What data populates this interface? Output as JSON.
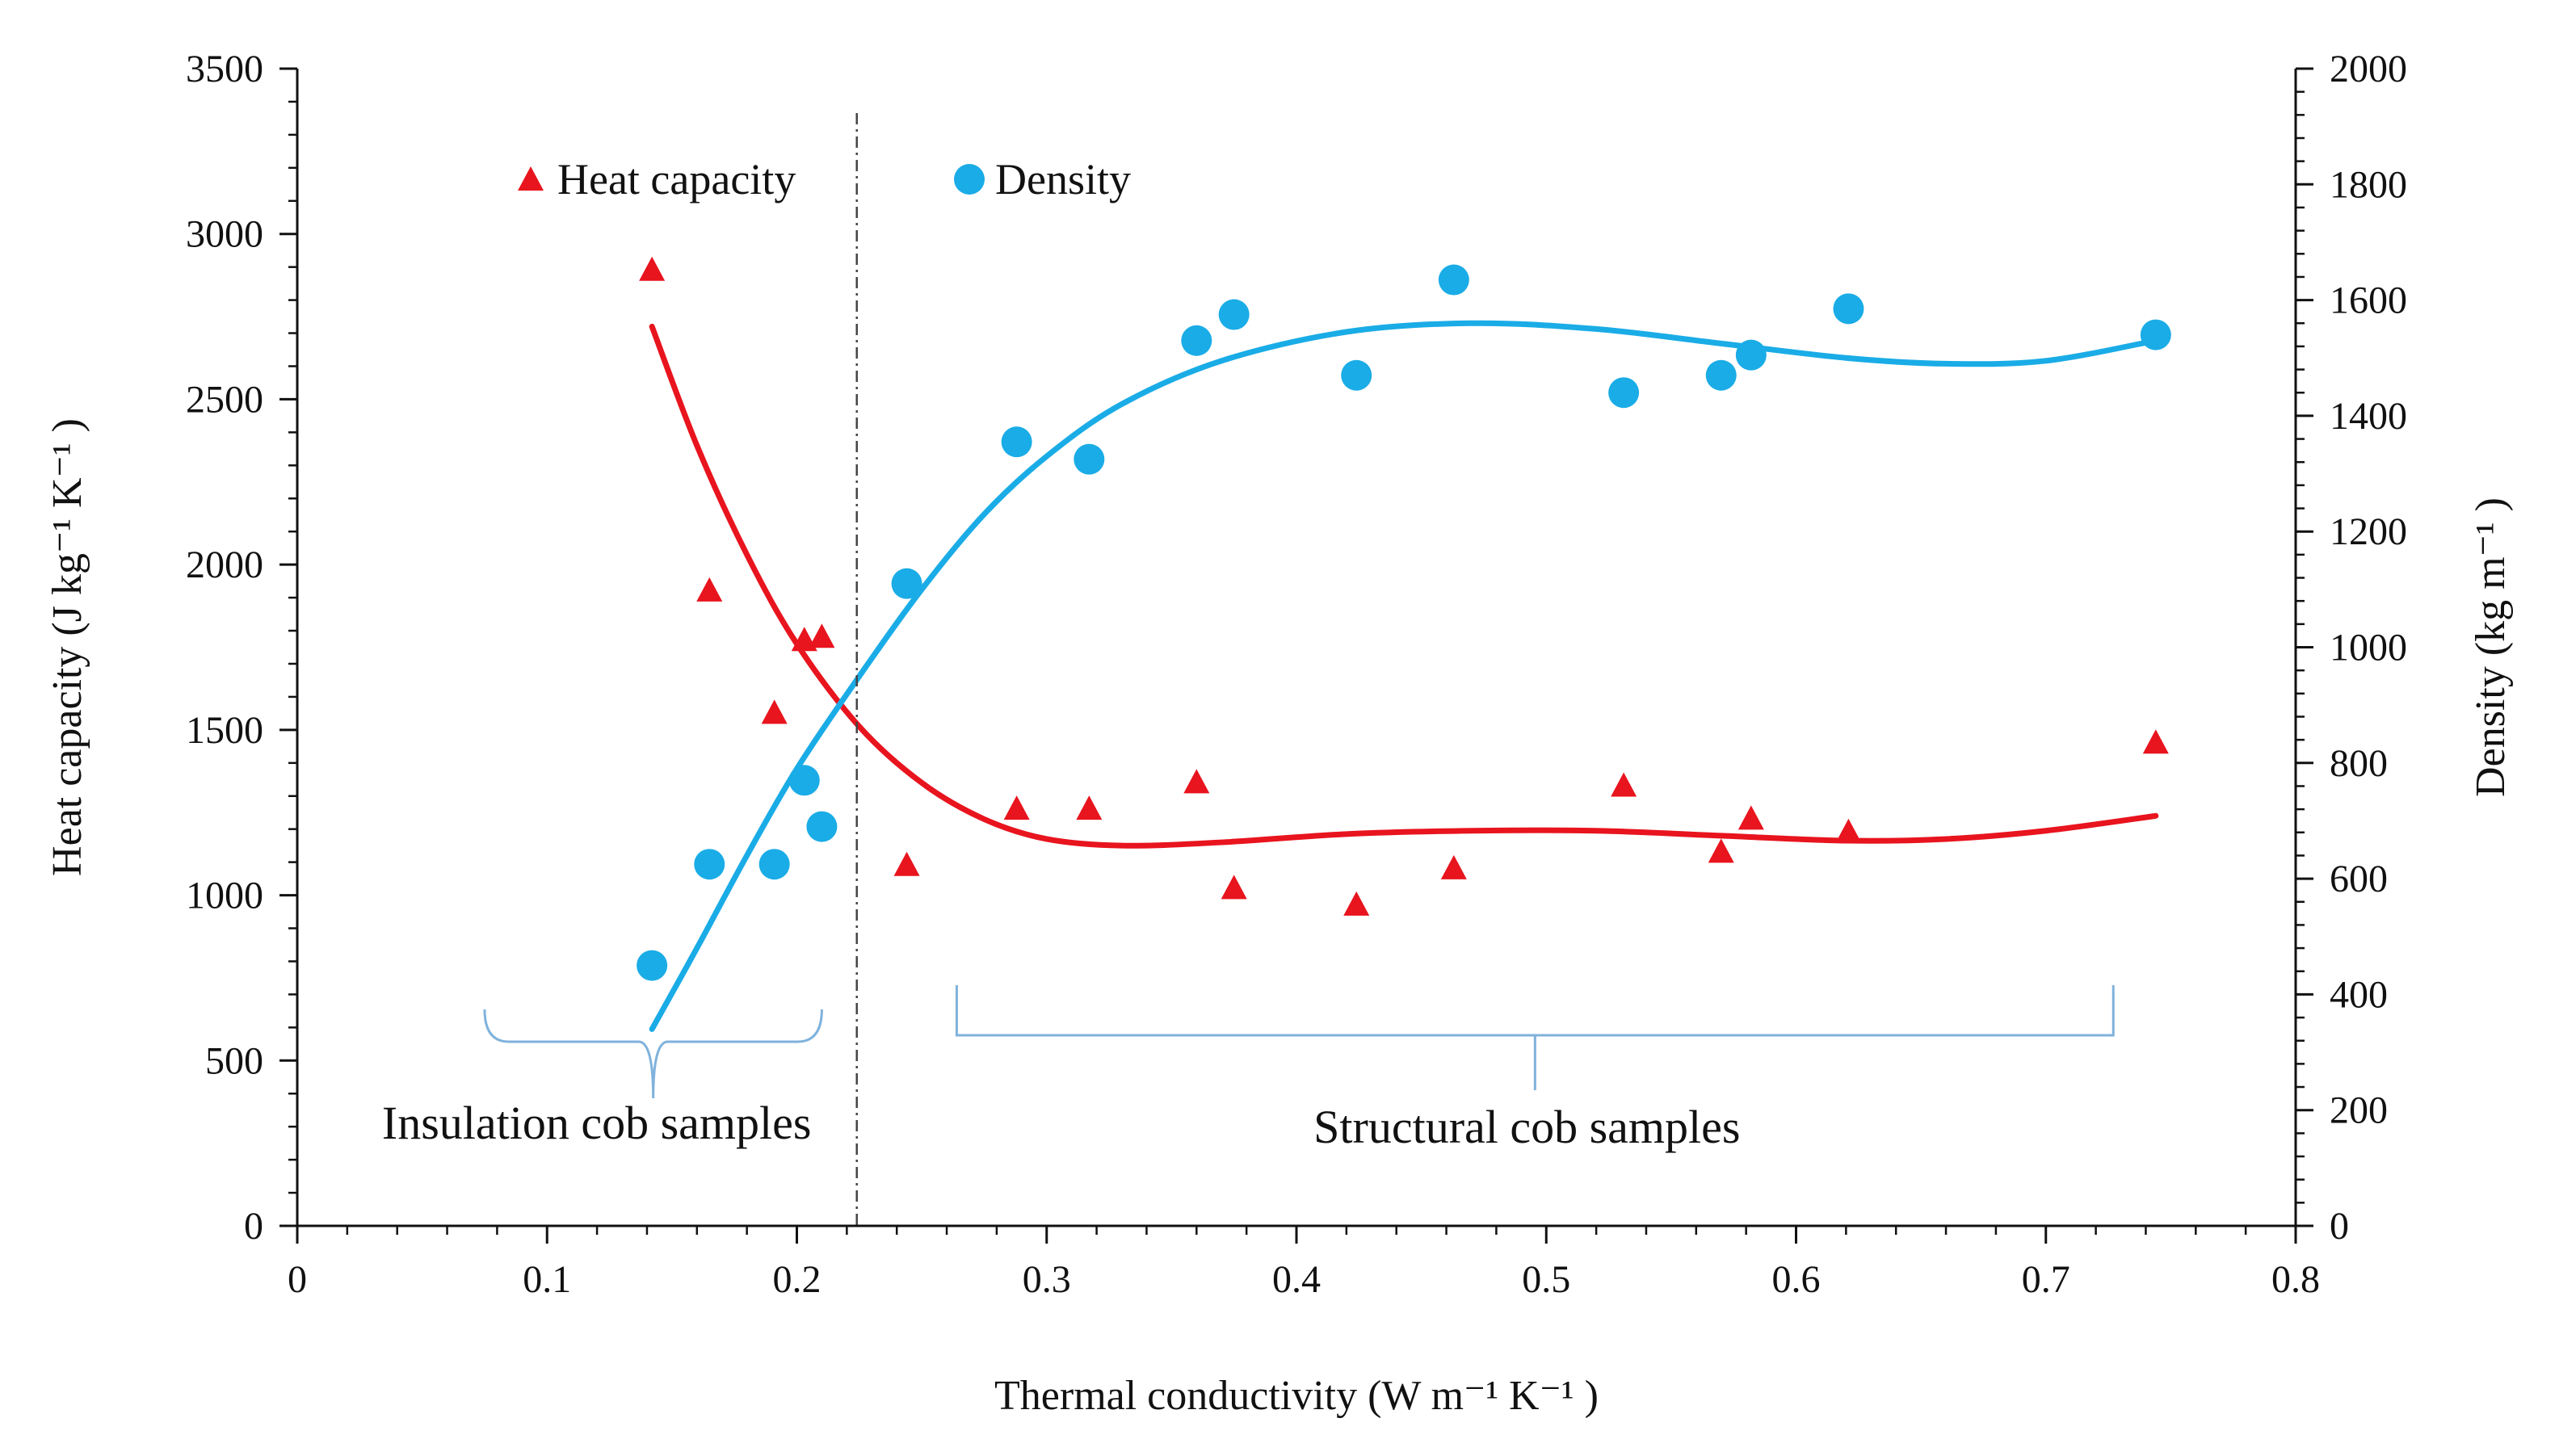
{
  "chart_data": {
    "type": "scatter",
    "title": "",
    "xlabel": "Thermal conductivity (W m⁻¹ K⁻¹ )",
    "ylabel_left": "Heat capacity (J kg⁻¹ K⁻¹ )",
    "ylabel_right": "Density (kg m⁻¹ )",
    "xlim": [
      0,
      0.8
    ],
    "ylim_left": [
      0,
      3500
    ],
    "ylim_right": [
      0,
      2000
    ],
    "x_ticks": [
      "0",
      "0.1",
      "0.2",
      "0.3",
      "0.4",
      "0.5",
      "0.6",
      "0.7",
      "0.8"
    ],
    "y_left_ticks": [
      "0",
      "500",
      "1000",
      "1500",
      "2000",
      "2500",
      "3000",
      "3500"
    ],
    "y_right_ticks": [
      "0",
      "200",
      "400",
      "600",
      "800",
      "1000",
      "1200",
      "1400",
      "1600",
      "1800",
      "2000"
    ],
    "grid": false,
    "legend_position": "top-left",
    "divider_x": 0.224,
    "series": [
      {
        "name": "Heat capacity",
        "axis": "left",
        "marker": "triangle",
        "color": "#e8141e",
        "points": [
          {
            "x": 0.142,
            "y": 2890
          },
          {
            "x": 0.165,
            "y": 1920
          },
          {
            "x": 0.191,
            "y": 1550
          },
          {
            "x": 0.203,
            "y": 1770
          },
          {
            "x": 0.21,
            "y": 1780
          },
          {
            "x": 0.244,
            "y": 1090
          },
          {
            "x": 0.288,
            "y": 1260
          },
          {
            "x": 0.317,
            "y": 1260
          },
          {
            "x": 0.36,
            "y": 1340
          },
          {
            "x": 0.375,
            "y": 1020
          },
          {
            "x": 0.424,
            "y": 970
          },
          {
            "x": 0.463,
            "y": 1080
          },
          {
            "x": 0.531,
            "y": 1330
          },
          {
            "x": 0.57,
            "y": 1130
          },
          {
            "x": 0.582,
            "y": 1230
          },
          {
            "x": 0.621,
            "y": 1190
          },
          {
            "x": 0.744,
            "y": 1460
          }
        ],
        "trend": [
          {
            "x": 0.142,
            "y": 2720
          },
          {
            "x": 0.16,
            "y": 2360
          },
          {
            "x": 0.18,
            "y": 2030
          },
          {
            "x": 0.2,
            "y": 1760
          },
          {
            "x": 0.225,
            "y": 1510
          },
          {
            "x": 0.25,
            "y": 1340
          },
          {
            "x": 0.275,
            "y": 1230
          },
          {
            "x": 0.3,
            "y": 1170
          },
          {
            "x": 0.33,
            "y": 1150
          },
          {
            "x": 0.37,
            "y": 1160
          },
          {
            "x": 0.42,
            "y": 1185
          },
          {
            "x": 0.47,
            "y": 1195
          },
          {
            "x": 0.52,
            "y": 1195
          },
          {
            "x": 0.57,
            "y": 1180
          },
          {
            "x": 0.62,
            "y": 1165
          },
          {
            "x": 0.66,
            "y": 1170
          },
          {
            "x": 0.7,
            "y": 1195
          },
          {
            "x": 0.744,
            "y": 1240
          }
        ]
      },
      {
        "name": "Density",
        "axis": "right",
        "marker": "circle",
        "color": "#1aace6",
        "points": [
          {
            "x": 0.142,
            "y": 450
          },
          {
            "x": 0.165,
            "y": 625
          },
          {
            "x": 0.191,
            "y": 625
          },
          {
            "x": 0.203,
            "y": 770
          },
          {
            "x": 0.21,
            "y": 690
          },
          {
            "x": 0.244,
            "y": 1110
          },
          {
            "x": 0.288,
            "y": 1355
          },
          {
            "x": 0.317,
            "y": 1325
          },
          {
            "x": 0.36,
            "y": 1530
          },
          {
            "x": 0.375,
            "y": 1575
          },
          {
            "x": 0.424,
            "y": 1470
          },
          {
            "x": 0.463,
            "y": 1635
          },
          {
            "x": 0.531,
            "y": 1440
          },
          {
            "x": 0.57,
            "y": 1470
          },
          {
            "x": 0.582,
            "y": 1505
          },
          {
            "x": 0.621,
            "y": 1585
          },
          {
            "x": 0.744,
            "y": 1540
          }
        ],
        "trend": [
          {
            "x": 0.142,
            "y": 340
          },
          {
            "x": 0.16,
            "y": 480
          },
          {
            "x": 0.18,
            "y": 640
          },
          {
            "x": 0.2,
            "y": 790
          },
          {
            "x": 0.225,
            "y": 950
          },
          {
            "x": 0.25,
            "y": 1100
          },
          {
            "x": 0.275,
            "y": 1230
          },
          {
            "x": 0.3,
            "y": 1330
          },
          {
            "x": 0.33,
            "y": 1420
          },
          {
            "x": 0.37,
            "y": 1495
          },
          {
            "x": 0.42,
            "y": 1545
          },
          {
            "x": 0.47,
            "y": 1560
          },
          {
            "x": 0.52,
            "y": 1550
          },
          {
            "x": 0.57,
            "y": 1525
          },
          {
            "x": 0.62,
            "y": 1500
          },
          {
            "x": 0.66,
            "y": 1490
          },
          {
            "x": 0.7,
            "y": 1495
          },
          {
            "x": 0.744,
            "y": 1530
          }
        ]
      }
    ],
    "annotations": [
      {
        "text": "Insulation cob samples",
        "x_from": 0.075,
        "x_to": 0.21
      },
      {
        "text": "Structural cob samples",
        "x_from": 0.264,
        "x_to": 0.727
      }
    ],
    "colors": {
      "axis": "#111111",
      "divider": "#444444",
      "brace": "#7fb2dc"
    }
  }
}
